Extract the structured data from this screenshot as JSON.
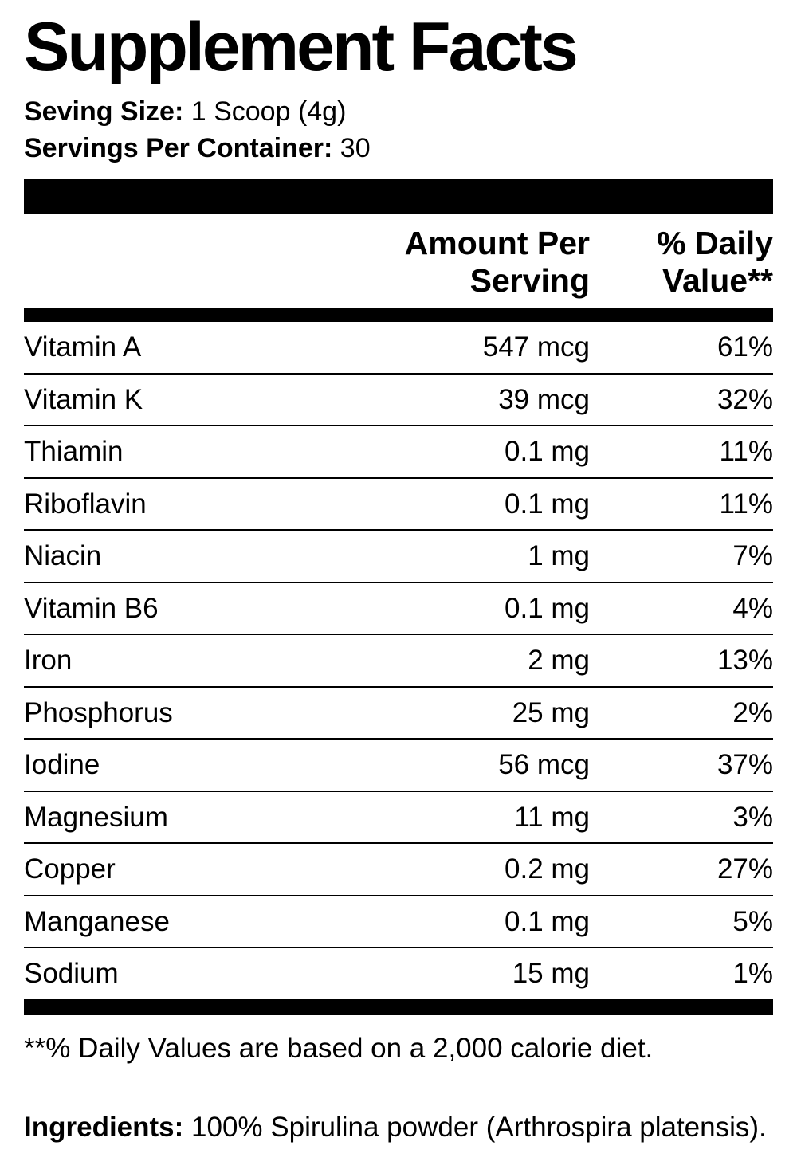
{
  "title": "Supplement Facts",
  "serving": {
    "size_label": "Seving Size:",
    "size_value": "1 Scoop (4g)",
    "per_container_label": "Servings Per Container:",
    "per_container_value": "30"
  },
  "columns": {
    "amount_header": "Amount Per Serving",
    "daily_value_header": "% Daily Value**"
  },
  "rows": [
    {
      "name": "Vitamin A",
      "amount": "547 mcg",
      "dv": "61%"
    },
    {
      "name": "Vitamin K",
      "amount": "39 mcg",
      "dv": "32%"
    },
    {
      "name": "Thiamin",
      "amount": "0.1 mg",
      "dv": "11%"
    },
    {
      "name": "Riboflavin",
      "amount": "0.1 mg",
      "dv": "11%"
    },
    {
      "name": "Niacin",
      "amount": "1 mg",
      "dv": "7%"
    },
    {
      "name": "Vitamin B6",
      "amount": "0.1 mg",
      "dv": "4%"
    },
    {
      "name": "Iron",
      "amount": "2 mg",
      "dv": "13%"
    },
    {
      "name": "Phosphorus",
      "amount": "25 mg",
      "dv": "2%"
    },
    {
      "name": "Iodine",
      "amount": "56 mcg",
      "dv": "37%"
    },
    {
      "name": "Magnesium",
      "amount": "11 mg",
      "dv": "3%"
    },
    {
      "name": "Copper",
      "amount": "0.2 mg",
      "dv": "27%"
    },
    {
      "name": "Manganese",
      "amount": "0.1 mg",
      "dv": "5%"
    },
    {
      "name": "Sodium",
      "amount": "15 mg",
      "dv": "1%"
    }
  ],
  "footnote": "**% Daily Values are based on a 2,000 calorie diet.",
  "ingredients": {
    "label": "Ingredients:",
    "value": "100% Spirulina powder (Arthrospira platensis)."
  },
  "colors": {
    "foreground": "#000000",
    "background": "#ffffff"
  }
}
